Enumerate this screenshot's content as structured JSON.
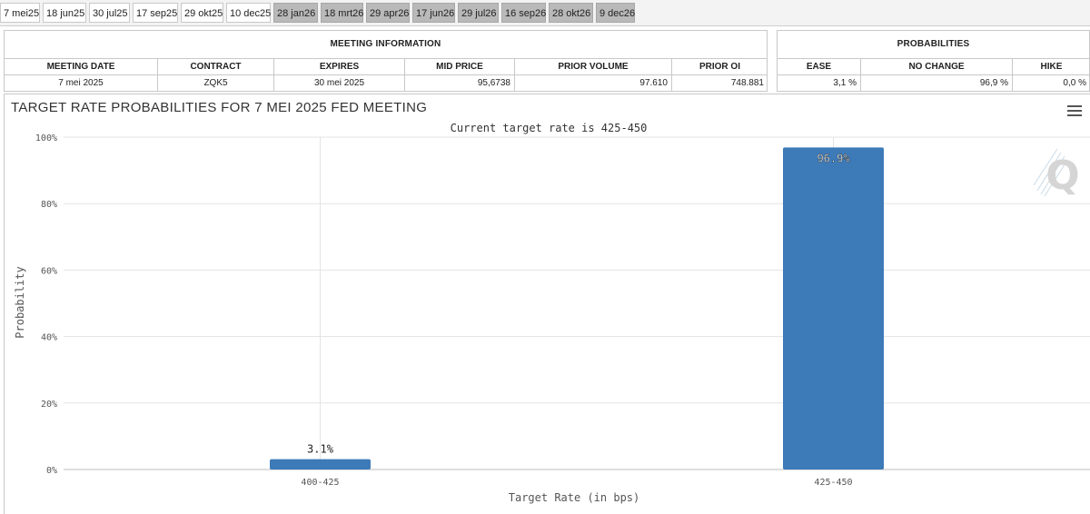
{
  "tabs": [
    {
      "label": "7 mei25",
      "state": "active"
    },
    {
      "label": "18 jun25",
      "state": "light"
    },
    {
      "label": "30 jul25",
      "state": "light"
    },
    {
      "label": "17 sep25",
      "state": "light"
    },
    {
      "label": "29 okt25",
      "state": "light"
    },
    {
      "label": "10 dec25",
      "state": "light"
    },
    {
      "label": "28 jan26",
      "state": "dark"
    },
    {
      "label": "18 mrt26",
      "state": "dark"
    },
    {
      "label": "29 apr26",
      "state": "dark"
    },
    {
      "label": "17 jun26",
      "state": "dark"
    },
    {
      "label": "29 jul26",
      "state": "dark"
    },
    {
      "label": "16 sep26",
      "state": "dark"
    },
    {
      "label": "28 okt26",
      "state": "dark"
    },
    {
      "label": "9 dec26",
      "state": "dark"
    }
  ],
  "meeting": {
    "title": "MEETING INFORMATION",
    "headers": [
      "MEETING DATE",
      "CONTRACT",
      "EXPIRES",
      "MID PRICE",
      "PRIOR VOLUME",
      "PRIOR OI"
    ],
    "values": [
      "7 mei 2025",
      "ZQK5",
      "30 mei 2025",
      "95,6738",
      "97.610",
      "748.881"
    ]
  },
  "probabilities": {
    "title": "PROBABILITIES",
    "headers": [
      "EASE",
      "NO CHANGE",
      "HIKE"
    ],
    "values": [
      "3,1 %",
      "96,9 %",
      "0,0 %"
    ]
  },
  "chart": {
    "title": "TARGET RATE PROBABILITIES FOR 7 MEI 2025 FED MEETING",
    "subtitle": "Current target rate is 425-450"
  },
  "chart_data": {
    "type": "bar",
    "categories": [
      "400-425",
      "425-450"
    ],
    "values": [
      3.1,
      96.9
    ],
    "data_labels": [
      "3.1%",
      "96.9%"
    ],
    "xlabel": "Target Rate (in bps)",
    "ylabel": "Probability",
    "ylim": [
      0,
      100
    ],
    "yticks": [
      "0%",
      "20%",
      "40%",
      "60%",
      "80%",
      "100%"
    ],
    "grid": true,
    "bar_color": "#3d7ab8"
  }
}
